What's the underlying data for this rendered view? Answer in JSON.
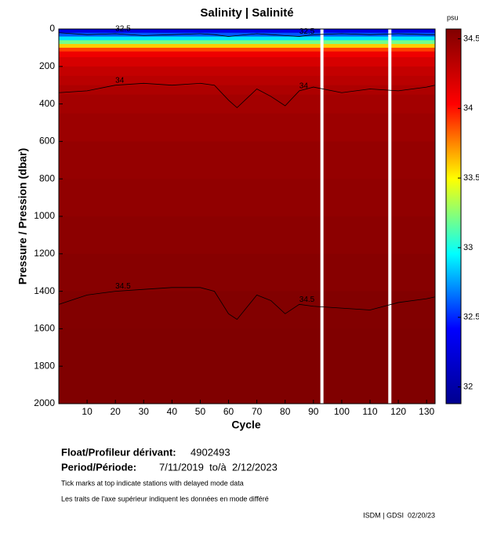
{
  "chart_data": {
    "type": "section",
    "title": "Salinity | Salinité",
    "xlabel": "Cycle",
    "ylabel": "Pressure / Pression (dbar)",
    "xlim": [
      0,
      133
    ],
    "xticks": [
      10,
      20,
      30,
      40,
      50,
      60,
      70,
      80,
      90,
      100,
      110,
      120,
      130
    ],
    "ylim": [
      2000,
      0
    ],
    "yticks": [
      0,
      200,
      400,
      600,
      800,
      1000,
      1200,
      1400,
      1600,
      1800,
      2000
    ],
    "levels": [
      0,
      20,
      40,
      60,
      80,
      100,
      120,
      150,
      200,
      250,
      300,
      350,
      450,
      600,
      800,
      1000,
      1200,
      1400,
      1600,
      1800,
      2000
    ],
    "profile": [
      32.3,
      32.6,
      32.9,
      33.2,
      33.6,
      33.9,
      34.1,
      34.2,
      34.28,
      34.33,
      34.38,
      34.42,
      34.45,
      34.48,
      34.5,
      34.52,
      34.54,
      34.56,
      34.58,
      34.6
    ],
    "gaps": [
      93,
      117
    ],
    "colormap": [
      "#00008f",
      "#0000ff",
      "#00ffff",
      "#ffff00",
      "#ff0000",
      "#800000"
    ],
    "clim": [
      31.88,
      34.57
    ],
    "cticks": [
      32,
      32.5,
      33,
      33.5,
      34,
      34.5
    ],
    "cunit": "psu",
    "contour_x": [
      0,
      10,
      20,
      30,
      40,
      50,
      55,
      60,
      63,
      70,
      75,
      80,
      85,
      90,
      100,
      110,
      120,
      130,
      133
    ],
    "contours": [
      {
        "name": "32.5",
        "values": [
          20,
          30,
          25,
          35,
          30,
          25,
          30,
          40,
          35,
          25,
          30,
          35,
          40,
          30,
          25,
          30,
          25,
          30,
          30
        ]
      },
      {
        "name": "34",
        "values": [
          340,
          330,
          300,
          290,
          300,
          290,
          300,
          380,
          420,
          320,
          360,
          410,
          330,
          310,
          340,
          320,
          330,
          310,
          300
        ]
      },
      {
        "name": "34.5",
        "values": [
          1470,
          1420,
          1400,
          1390,
          1380,
          1380,
          1400,
          1520,
          1550,
          1420,
          1450,
          1520,
          1470,
          1480,
          1490,
          1500,
          1460,
          1440,
          1430
        ]
      }
    ]
  },
  "footer": {
    "float_label": "Float/Profileur dérivant:",
    "float_id": "4902493",
    "period_label": "Period/Période:",
    "period": "7/11/2019  to/à  2/12/2023",
    "note_en": "Tick marks at top indicate stations with delayed mode data",
    "note_fr": "Les traits de l'axe supérieur indiquent les données en mode différé",
    "stamp": "ISDM | GDSI  02/20/23"
  }
}
